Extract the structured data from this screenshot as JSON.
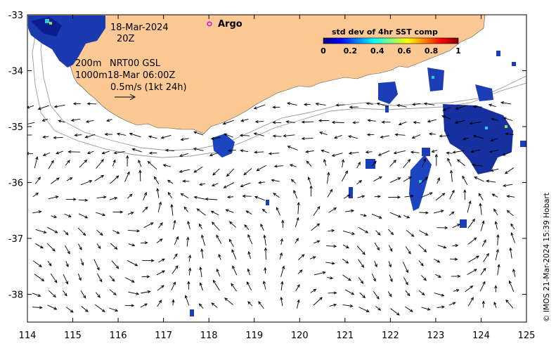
{
  "map": {
    "x_ticks": [
      "114",
      "115",
      "116",
      "117",
      "118",
      "119",
      "120",
      "121",
      "122",
      "123",
      "124",
      "125"
    ],
    "y_ticks": [
      "-33",
      "-34",
      "-35",
      "-36",
      "-37",
      "-38"
    ]
  },
  "annotations": {
    "date_line1": "18-Mar-2024",
    "date_line2": "20Z",
    "depth_200": "200m",
    "depth_1000": "1000m",
    "product": "NRT00 GSL",
    "product_time": "18-Mar 06:00Z",
    "scale_label": "0.5m/s (1kt 24h)",
    "argo_label": "Argo",
    "credit": "© IMOS 21-Mar-2024 15:39 Hobart"
  },
  "colorbar": {
    "title": "std dev of 4hr SST comp",
    "ticks": [
      "0",
      "0.2",
      "0.4",
      "0.6",
      "0.8",
      "1"
    ],
    "colors": [
      "#00007f",
      "#0000ff",
      "#0080ff",
      "#00ffff",
      "#80ff80",
      "#ffff00",
      "#ff8000",
      "#ff0000",
      "#7f0000"
    ]
  },
  "colors": {
    "land": "#fcc894",
    "ocean": "#ffffff",
    "argo": "#e000e0"
  }
}
